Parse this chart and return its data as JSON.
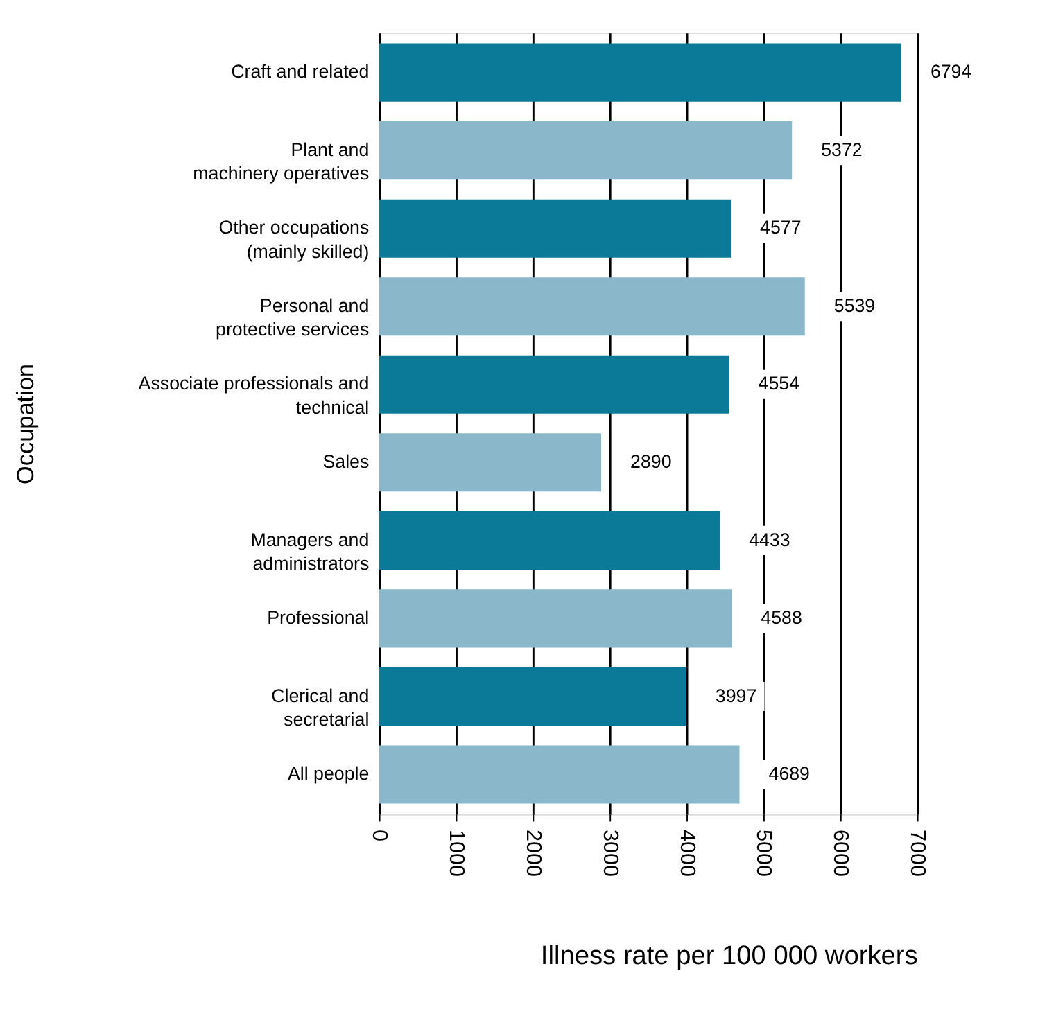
{
  "chart_data": {
    "type": "bar",
    "orientation": "horizontal",
    "xlabel": "Illness rate per 100 000 workers",
    "ylabel": "Occupation",
    "categories": [
      "Craft and related",
      "Plant and\nmachinery operatives",
      "Other occupations\n(mainly skilled)",
      "Personal and\nprotective services",
      "Associate professionals and\ntechnical",
      "Sales",
      "Managers and\nadministrators",
      "Professional",
      "Clerical and\nsecretarial",
      "All people"
    ],
    "values": [
      6794,
      5372,
      4577,
      5539,
      4554,
      2890,
      4433,
      4588,
      3997,
      4689
    ],
    "colors": [
      "#0b7a98",
      "#8ab7ca",
      "#0b7a98",
      "#8ab7ca",
      "#0b7a98",
      "#8ab7ca",
      "#0b7a98",
      "#8ab7ca",
      "#0b7a98",
      "#8ab7ca"
    ],
    "xlim": [
      0,
      7000
    ],
    "xticks": [
      0,
      1000,
      2000,
      3000,
      4000,
      5000,
      6000,
      7000
    ],
    "grid": "x",
    "data_labels": true,
    "legend": false
  }
}
